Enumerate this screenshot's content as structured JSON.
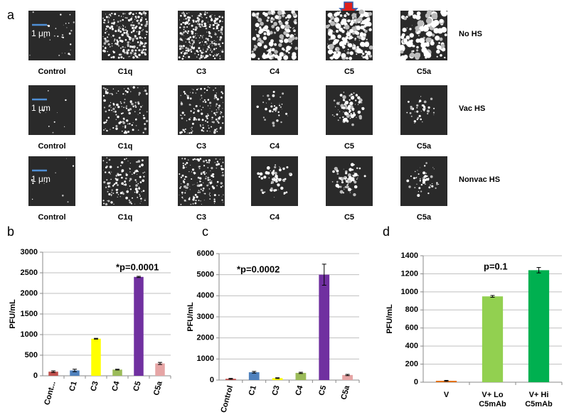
{
  "panel_a": {
    "label": "a",
    "scale_bar": "1 μm",
    "columns": [
      "Control",
      "C1q",
      "C3",
      "C4",
      "C5",
      "C5a"
    ],
    "rows": [
      "No HS",
      "Vac HS",
      "Nonvac HS"
    ]
  },
  "chart_data": [
    {
      "type": "bar",
      "label": "b",
      "y_label": "PFU/mL",
      "annotation": "*p=0.0001",
      "categories": [
        "Cont...",
        "C1",
        "C3",
        "C4",
        "C5",
        "C5a"
      ],
      "values": [
        100,
        130,
        900,
        150,
        2400,
        300
      ],
      "errors": [
        20,
        30,
        10,
        10,
        15,
        25
      ],
      "colors": [
        "#c0504d",
        "#4f81bd",
        "#ffff00",
        "#9bbb59",
        "#7030a0",
        "#e6a5a5"
      ],
      "ylim": [
        0,
        3000
      ],
      "yticks": [
        0,
        500,
        1000,
        1500,
        2000,
        2500,
        3000
      ],
      "grid": true
    },
    {
      "type": "bar",
      "label": "c",
      "y_label": "PFU/mL",
      "annotation": "*p=0.0002",
      "categories": [
        "Control",
        "C1",
        "C3",
        "C4",
        "C5",
        "C5a"
      ],
      "values": [
        60,
        370,
        90,
        340,
        5000,
        240
      ],
      "errors": [
        20,
        40,
        20,
        30,
        500,
        30
      ],
      "colors": [
        "#c0504d",
        "#4f81bd",
        "#ffff00",
        "#9bbb59",
        "#7030a0",
        "#e6a5a5"
      ],
      "ylim": [
        0,
        6000
      ],
      "yticks": [
        0,
        1000,
        2000,
        3000,
        4000,
        5000,
        6000
      ],
      "grid": true
    },
    {
      "type": "bar",
      "label": "d",
      "y_label": "PFU/mL",
      "annotation": "p=0.1",
      "categories": [
        "V",
        "V+ Lo C5mAb",
        "V+ Hi C5mAb"
      ],
      "values": [
        15,
        950,
        1240
      ],
      "errors": [
        5,
        10,
        30
      ],
      "colors": [
        "#e46c0a",
        "#92d050",
        "#00b050"
      ],
      "ylim": [
        0,
        1400
      ],
      "yticks": [
        0,
        200,
        400,
        600,
        800,
        1000,
        1200,
        1400
      ],
      "grid": true
    }
  ]
}
